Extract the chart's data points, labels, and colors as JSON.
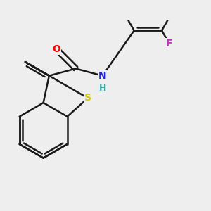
{
  "background_color": "#eeeeee",
  "bond_color": "#1a1a1a",
  "bond_width": 1.8,
  "atom_labels": {
    "S": {
      "color": "#cccc00",
      "fontsize": 10
    },
    "O": {
      "color": "#ff0000",
      "fontsize": 10
    },
    "N": {
      "color": "#2222dd",
      "fontsize": 10
    },
    "H": {
      "color": "#33aaaa",
      "fontsize": 9
    },
    "F": {
      "color": "#bb33bb",
      "fontsize": 10
    }
  },
  "figsize": [
    3.0,
    3.0
  ],
  "dpi": 100,
  "xlim": [
    -2.0,
    5.5
  ],
  "ylim": [
    -3.0,
    3.2
  ]
}
